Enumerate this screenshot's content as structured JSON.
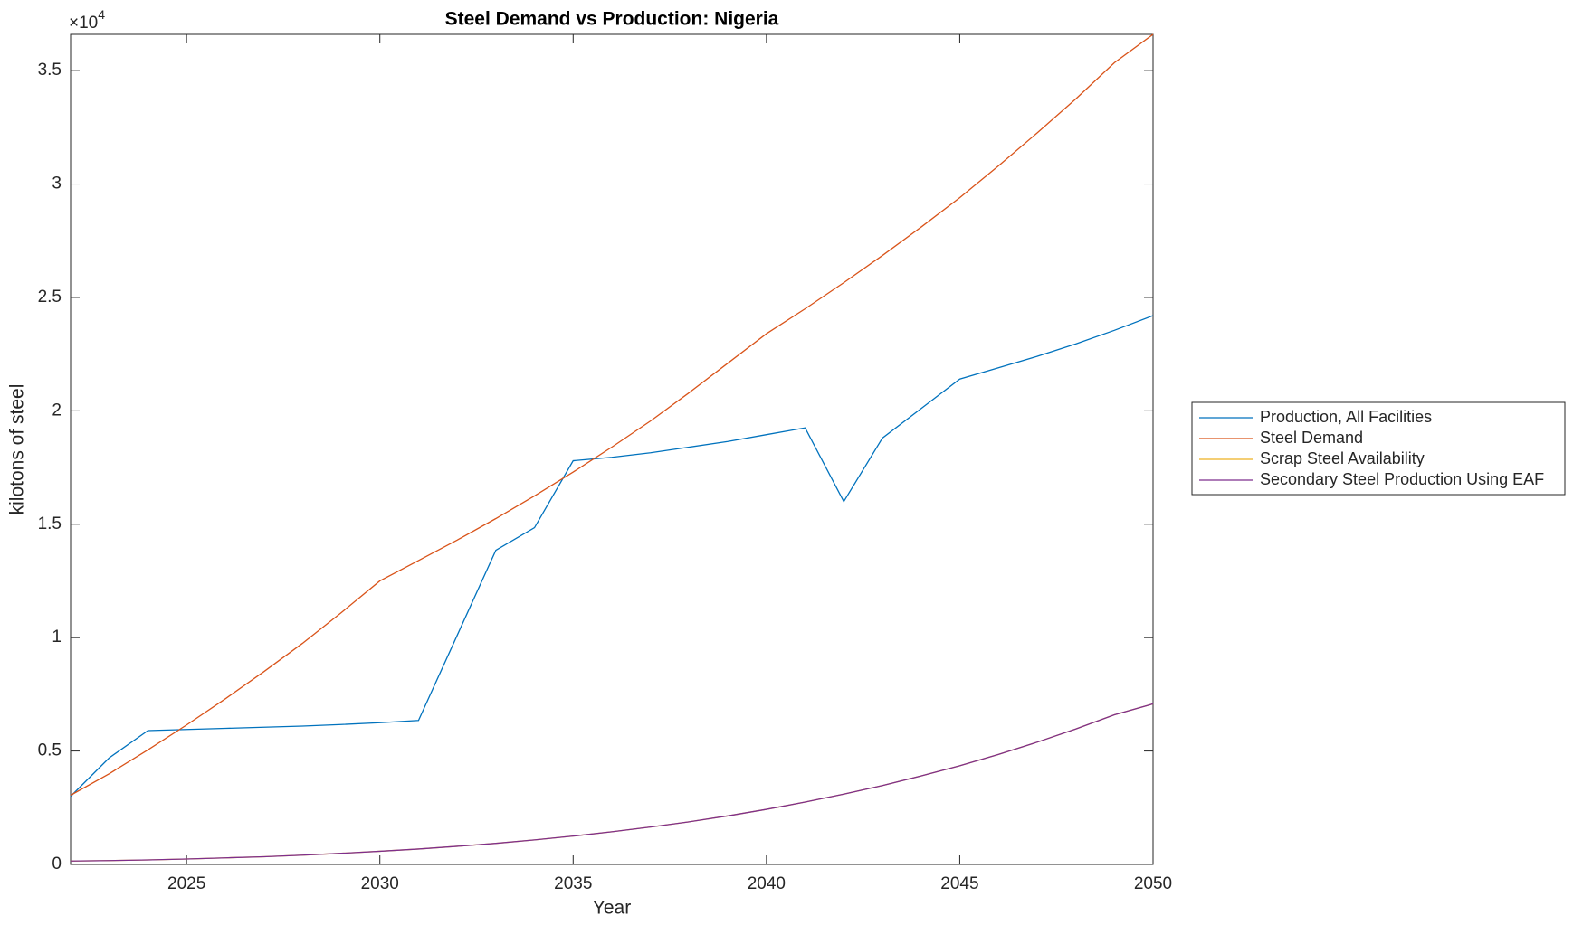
{
  "chart_data": {
    "type": "line",
    "title": "Steel Demand vs Production: Nigeria",
    "x_label": "Year",
    "y_label": "kilotons of steel",
    "y_multiplier": {
      "base": "×10",
      "power": "4"
    },
    "x": [
      2022,
      2023,
      2024,
      2025,
      2026,
      2027,
      2028,
      2029,
      2030,
      2031,
      2032,
      2033,
      2034,
      2035,
      2036,
      2037,
      2038,
      2039,
      2040,
      2041,
      2042,
      2043,
      2044,
      2045,
      2046,
      2047,
      2048,
      2049,
      2050
    ],
    "series": [
      {
        "name": "Production, All Facilities",
        "color": "#0072bd",
        "values": [
          3000,
          4700,
          5900,
          5950,
          6000,
          6050,
          6100,
          6170,
          6250,
          6350,
          10100,
          13850,
          14850,
          17800,
          17950,
          18150,
          18400,
          18650,
          18950,
          19250,
          16000,
          18800,
          20100,
          21400,
          21900,
          22400,
          22950,
          23550,
          24200
        ]
      },
      {
        "name": "Steel Demand",
        "color": "#d95319",
        "values": [
          3050,
          4000,
          5050,
          6150,
          7300,
          8500,
          9750,
          11100,
          12500,
          13400,
          14300,
          15250,
          16250,
          17300,
          18400,
          19550,
          20800,
          22100,
          23400,
          24500,
          25650,
          26850,
          28100,
          29400,
          30800,
          32250,
          33750,
          35350,
          36600
        ]
      },
      {
        "name": "Scrap Steel Availability",
        "color": "#edb120",
        "values": [
          150,
          170,
          200,
          240,
          290,
          340,
          410,
          490,
          580,
          680,
          800,
          930,
          1080,
          1250,
          1440,
          1650,
          1880,
          2140,
          2430,
          2750,
          3100,
          3480,
          3900,
          4350,
          4850,
          5390,
          5970,
          6600,
          7080
        ]
      },
      {
        "name": "Secondary Steel Production Using EAF",
        "color": "#7e2f8e",
        "values": [
          150,
          170,
          200,
          240,
          290,
          340,
          410,
          490,
          580,
          680,
          800,
          930,
          1080,
          1250,
          1440,
          1650,
          1880,
          2140,
          2430,
          2750,
          3100,
          3480,
          3900,
          4350,
          4850,
          5390,
          5970,
          6600,
          7080
        ]
      }
    ],
    "xlim": [
      2022,
      2050
    ],
    "xticks": [
      2025,
      2030,
      2035,
      2040,
      2045,
      2050
    ],
    "ylim": [
      0,
      36600
    ],
    "yticks": [
      0,
      {
        "value": 5000,
        "label": "0.5"
      },
      {
        "value": 10000,
        "label": "1"
      },
      {
        "value": 15000,
        "label": "1.5"
      },
      {
        "value": 20000,
        "label": "2"
      },
      {
        "value": 25000,
        "label": "2.5"
      },
      {
        "value": 30000,
        "label": "3"
      },
      {
        "value": 35000,
        "label": "3.5"
      }
    ],
    "legend": "outside-right"
  }
}
